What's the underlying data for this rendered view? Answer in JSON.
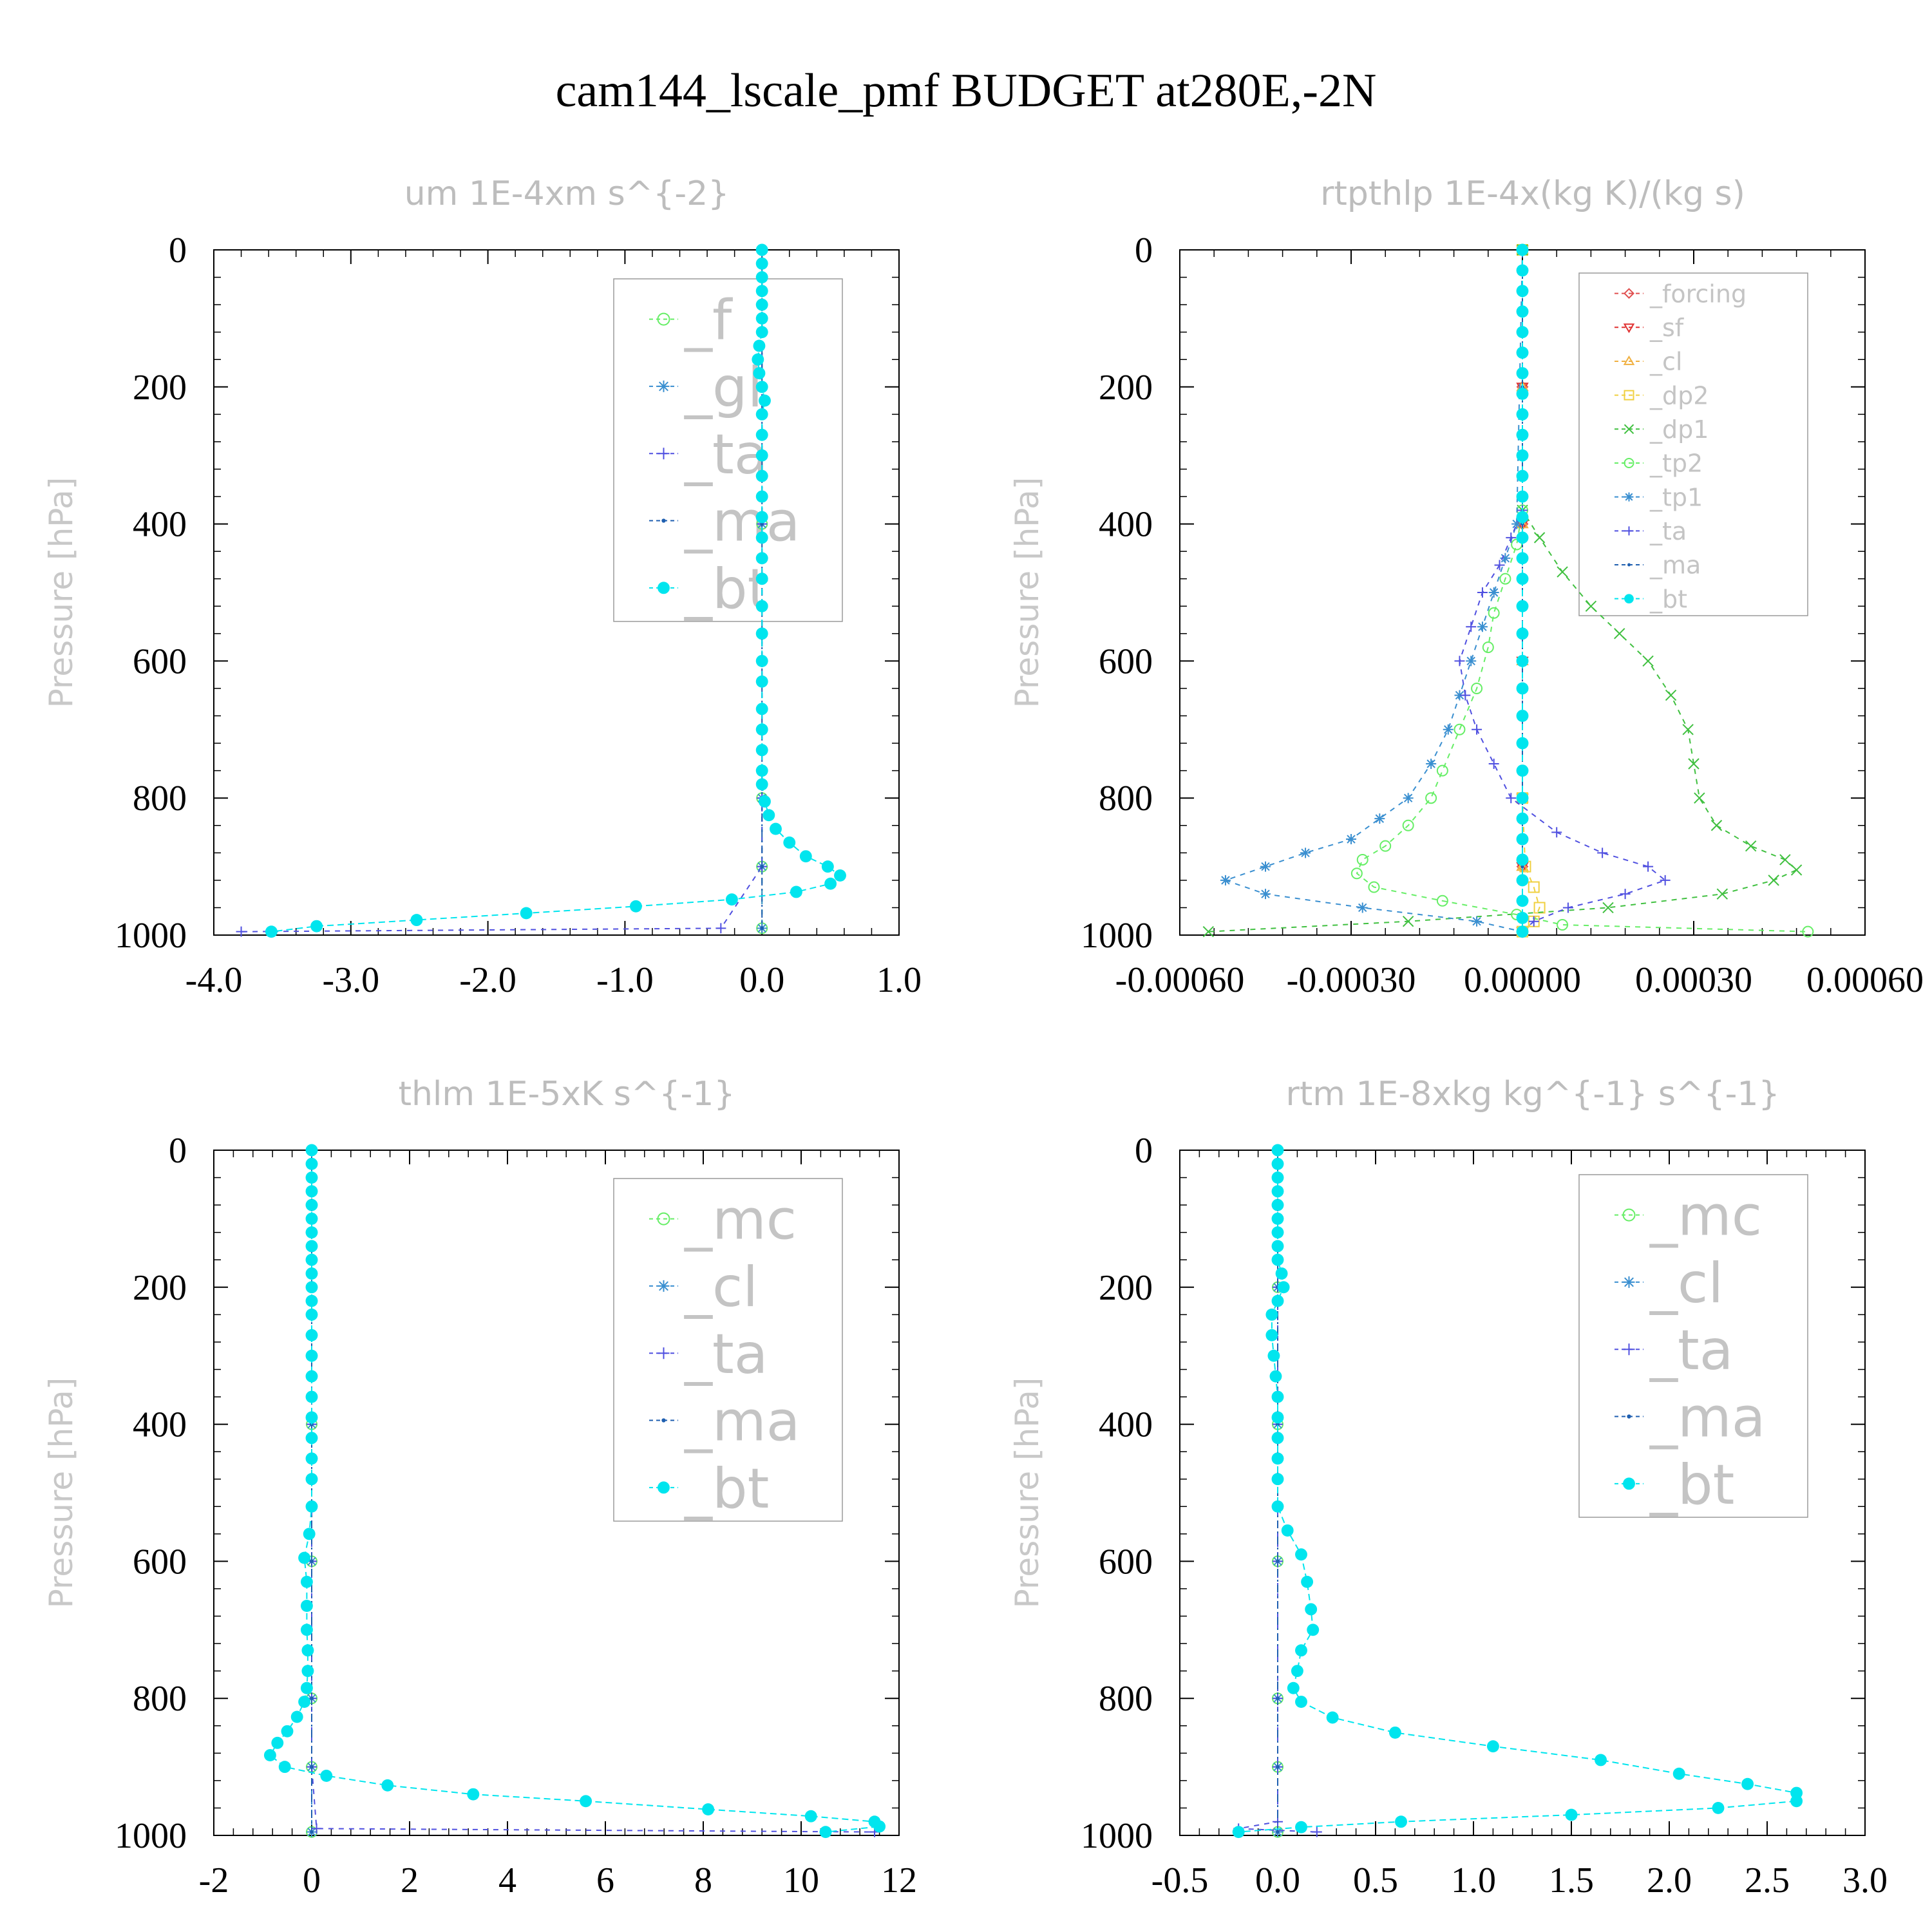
{
  "title": "cam144_lscale_pmf  BUDGET at280E,-2N",
  "chart_data": [
    {
      "id": "um",
      "type": "line",
      "title": "um   1E-4xm s^{-2}",
      "ylabel": "Pressure [hPa]",
      "xlim": [
        -4.0,
        1.0
      ],
      "ylim": [
        1000,
        0
      ],
      "xticks": [
        "-4.0",
        "-3.0",
        "-2.0",
        "-1.0",
        "0.0",
        "1.0"
      ],
      "yticks": [
        "0",
        "200",
        "400",
        "600",
        "800",
        "1000"
      ],
      "series": [
        {
          "name": "_f",
          "color": "#66ee66",
          "marker": "circle",
          "pressure": [
            0,
            200,
            400,
            600,
            800,
            900,
            990
          ],
          "values": [
            0.0,
            0.0,
            0.0,
            0.0,
            0.0,
            0.0,
            0.0
          ]
        },
        {
          "name": "_gl",
          "color": "#3a8fd0",
          "marker": "asterisk",
          "pressure": [
            0,
            200,
            400,
            600,
            800,
            900,
            990
          ],
          "values": [
            0.0,
            0.0,
            0.0,
            0.0,
            0.0,
            0.0,
            0.0
          ]
        },
        {
          "name": "_ta",
          "color": "#5050e0",
          "marker": "plus",
          "pressure": [
            0,
            200,
            400,
            600,
            800,
            900,
            990,
            995
          ],
          "values": [
            0.0,
            0.0,
            0.0,
            0.0,
            0.0,
            0.0,
            -0.3,
            -3.8
          ]
        },
        {
          "name": "_ma",
          "color": "#1f5fb0",
          "marker": "dot",
          "pressure": [
            0,
            200,
            400,
            600,
            800,
            900,
            990
          ],
          "values": [
            0.0,
            0.0,
            0.0,
            0.0,
            0.0,
            0.0,
            0.0
          ]
        },
        {
          "name": "_bt",
          "color": "#00e5ee",
          "marker": "filled",
          "pressure": [
            0,
            20,
            40,
            60,
            80,
            100,
            120,
            140,
            160,
            180,
            200,
            220,
            240,
            270,
            300,
            330,
            360,
            390,
            420,
            450,
            480,
            520,
            560,
            600,
            630,
            670,
            700,
            730,
            760,
            780,
            805,
            825,
            845,
            865,
            885,
            900,
            913,
            925,
            937,
            948,
            958,
            968,
            978,
            987,
            995
          ],
          "values": [
            0.0,
            0.0,
            0.0,
            0.0,
            0.0,
            0.0,
            0.0,
            -0.02,
            -0.03,
            -0.02,
            0.0,
            0.02,
            0.0,
            0.0,
            0.0,
            0.0,
            0.0,
            0.0,
            0.0,
            0.0,
            0.0,
            0.0,
            0.0,
            0.0,
            0.0,
            0.0,
            0.0,
            0.0,
            0.0,
            0.0,
            0.02,
            0.05,
            0.1,
            0.2,
            0.32,
            0.48,
            0.57,
            0.5,
            0.25,
            -0.22,
            -0.92,
            -1.72,
            -2.52,
            -3.25,
            -3.58
          ]
        }
      ],
      "legend_placement": "top-right"
    },
    {
      "id": "rtpthlp",
      "type": "line",
      "title": "rtpthlp   1E-4x(kg K)/(kg s)",
      "ylabel": "Pressure [hPa]",
      "xlim": [
        -0.0006,
        0.0006
      ],
      "ylim": [
        1000,
        0
      ],
      "xticks": [
        "-0.00060",
        "-0.00030",
        "0.00000",
        "0.00030",
        "0.00060"
      ],
      "yticks": [
        "0",
        "200",
        "400",
        "600",
        "800",
        "1000"
      ],
      "series": [
        {
          "name": "_forcing",
          "color": "#e05050",
          "marker": "diamond",
          "pressure": [
            0,
            200,
            400,
            600,
            800,
            900,
            995
          ],
          "values": [
            0.0,
            0.0,
            0.0,
            0.0,
            0.0,
            0.0,
            0.0
          ]
        },
        {
          "name": "_sf",
          "color": "#e03030",
          "marker": "triangle-down",
          "pressure": [
            0,
            200,
            400,
            600,
            800,
            900,
            995
          ],
          "values": [
            0.0,
            0.0,
            0.0,
            0.0,
            0.0,
            0.0,
            0.0
          ]
        },
        {
          "name": "_cl",
          "color": "#f0b040",
          "marker": "triangle-up",
          "pressure": [
            0,
            200,
            400,
            600,
            800,
            900,
            995
          ],
          "values": [
            0.0,
            0.0,
            0.0,
            0.0,
            0.0,
            0.0,
            0.0
          ]
        },
        {
          "name": "_dp2",
          "color": "#f0d040",
          "marker": "square",
          "pressure": [
            0,
            800,
            900,
            930,
            960,
            980,
            995
          ],
          "values": [
            0.0,
            0.0,
            5e-06,
            2e-05,
            3e-05,
            2e-05,
            0.0
          ]
        },
        {
          "name": "_dp1",
          "color": "#40c040",
          "marker": "cross",
          "pressure": [
            0,
            380,
            420,
            470,
            520,
            560,
            600,
            650,
            700,
            750,
            800,
            840,
            870,
            890,
            905,
            920,
            940,
            960,
            980,
            995
          ],
          "values": [
            0.0,
            0.0,
            3e-05,
            7e-05,
            0.00012,
            0.00017,
            0.00022,
            0.00026,
            0.00029,
            0.0003,
            0.00031,
            0.00034,
            0.0004,
            0.00046,
            0.00048,
            0.00044,
            0.00035,
            0.00015,
            -0.0002,
            -0.00055
          ]
        },
        {
          "name": "_tp2",
          "color": "#66ee66",
          "marker": "circle",
          "pressure": [
            0,
            380,
            430,
            480,
            530,
            580,
            640,
            700,
            760,
            800,
            840,
            870,
            890,
            910,
            930,
            950,
            970,
            985,
            995
          ],
          "values": [
            0.0,
            0.0,
            -1e-05,
            -3e-05,
            -5e-05,
            -6e-05,
            -8e-05,
            -0.00011,
            -0.00014,
            -0.00016,
            -0.0002,
            -0.00024,
            -0.00028,
            -0.00029,
            -0.00026,
            -0.00014,
            -1e-05,
            7e-05,
            0.0005
          ]
        },
        {
          "name": "_tp1",
          "color": "#3a8fd0",
          "marker": "asterisk",
          "pressure": [
            0,
            400,
            450,
            500,
            550,
            600,
            650,
            700,
            750,
            800,
            830,
            860,
            880,
            900,
            920,
            940,
            960,
            980,
            995
          ],
          "values": [
            0.0,
            -1e-05,
            -3e-05,
            -5e-05,
            -7e-05,
            -9e-05,
            -0.00011,
            -0.00013,
            -0.00016,
            -0.0002,
            -0.00025,
            -0.0003,
            -0.00038,
            -0.00045,
            -0.00052,
            -0.00045,
            -0.00028,
            -8e-05,
            0.0
          ]
        },
        {
          "name": "_ta",
          "color": "#5050e0",
          "marker": "plus",
          "pressure": [
            0,
            380,
            420,
            460,
            500,
            550,
            600,
            650,
            700,
            750,
            800,
            850,
            880,
            900,
            920,
            940,
            960,
            980,
            995
          ],
          "values": [
            0.0,
            0.0,
            -2e-05,
            -4e-05,
            -7e-05,
            -9e-05,
            -0.00011,
            -0.0001,
            -8e-05,
            -5e-05,
            -2e-05,
            6e-05,
            0.00014,
            0.00022,
            0.00025,
            0.00018,
            8e-05,
            2e-05,
            0.0
          ]
        },
        {
          "name": "_ma",
          "color": "#1f5fb0",
          "marker": "dot",
          "pressure": [
            0,
            200,
            400,
            600,
            800,
            900,
            995
          ],
          "values": [
            0.0,
            0.0,
            0.0,
            0.0,
            0.0,
            0.0,
            0.0
          ]
        },
        {
          "name": "_bt",
          "color": "#00e5ee",
          "marker": "filled",
          "pressure": [
            0,
            30,
            60,
            90,
            120,
            150,
            180,
            210,
            240,
            270,
            300,
            330,
            360,
            390,
            420,
            450,
            480,
            520,
            560,
            600,
            640,
            680,
            720,
            760,
            800,
            830,
            860,
            890,
            920,
            950,
            975,
            995
          ],
          "values": [
            0.0,
            0.0,
            0.0,
            0.0,
            0.0,
            0.0,
            0.0,
            0.0,
            0.0,
            0.0,
            0.0,
            0.0,
            0.0,
            0.0,
            0.0,
            0.0,
            0.0,
            0.0,
            0.0,
            0.0,
            0.0,
            0.0,
            0.0,
            0.0,
            0.0,
            0.0,
            0.0,
            0.0,
            0.0,
            0.0,
            0.0,
            0.0
          ]
        }
      ],
      "legend_placement": "top-right"
    },
    {
      "id": "thlm",
      "type": "line",
      "title": "thlm   1E-5xK s^{-1}",
      "ylabel": "Pressure [hPa]",
      "xlim": [
        -2,
        12
      ],
      "ylim": [
        1000,
        0
      ],
      "xticks": [
        "-2",
        "0",
        "2",
        "4",
        "6",
        "8",
        "10",
        "12"
      ],
      "yticks": [
        "0",
        "200",
        "400",
        "600",
        "800",
        "1000"
      ],
      "series": [
        {
          "name": "_mc",
          "color": "#66ee66",
          "marker": "circle",
          "pressure": [
            0,
            200,
            400,
            600,
            800,
            900,
            995
          ],
          "values": [
            0.0,
            0.0,
            0.0,
            0.0,
            0.0,
            0.0,
            0.0
          ]
        },
        {
          "name": "_cl",
          "color": "#3a8fd0",
          "marker": "asterisk",
          "pressure": [
            0,
            200,
            400,
            600,
            800,
            900,
            995
          ],
          "values": [
            0.0,
            0.0,
            0.0,
            0.0,
            0.0,
            0.0,
            0.0
          ]
        },
        {
          "name": "_ta",
          "color": "#5050e0",
          "marker": "plus",
          "pressure": [
            0,
            200,
            400,
            600,
            800,
            900,
            990,
            995
          ],
          "values": [
            0.0,
            0.0,
            0.0,
            0.0,
            0.0,
            0.0,
            0.1,
            11.5
          ]
        },
        {
          "name": "_ma",
          "color": "#1f5fb0",
          "marker": "dot",
          "pressure": [
            0,
            200,
            400,
            600,
            800,
            900,
            995
          ],
          "values": [
            0.0,
            0.0,
            0.0,
            0.0,
            0.0,
            0.0,
            0.0
          ]
        },
        {
          "name": "_bt",
          "color": "#00e5ee",
          "marker": "filled",
          "pressure": [
            0,
            20,
            40,
            60,
            80,
            100,
            120,
            140,
            160,
            180,
            200,
            220,
            240,
            270,
            300,
            330,
            360,
            390,
            420,
            450,
            480,
            520,
            560,
            595,
            630,
            665,
            700,
            730,
            760,
            785,
            805,
            827,
            848,
            865,
            883,
            900,
            913,
            927,
            940,
            950,
            962,
            972,
            980,
            987,
            995
          ],
          "values": [
            0.0,
            0.0,
            0.0,
            0.0,
            0.0,
            0.0,
            0.0,
            0.0,
            0.0,
            0.0,
            0.0,
            0.0,
            0.0,
            0.0,
            0.0,
            0.0,
            0.0,
            0.0,
            0.0,
            0.0,
            0.0,
            0.0,
            -0.05,
            -0.15,
            -0.1,
            -0.1,
            -0.1,
            -0.08,
            -0.08,
            -0.1,
            -0.15,
            -0.3,
            -0.5,
            -0.7,
            -0.85,
            -0.55,
            0.3,
            1.55,
            3.3,
            5.6,
            8.1,
            10.2,
            11.5,
            11.6,
            10.5
          ]
        }
      ],
      "legend_placement": "top-right"
    },
    {
      "id": "rtm",
      "type": "line",
      "title": "rtm   1E-8xkg kg^{-1} s^{-1}",
      "ylabel": "Pressure [hPa]",
      "xlim": [
        -0.5,
        3.0
      ],
      "ylim": [
        1000,
        0
      ],
      "xticks": [
        "-0.5",
        "0.0",
        "0.5",
        "1.0",
        "1.5",
        "2.0",
        "2.5",
        "3.0"
      ],
      "yticks": [
        "0",
        "200",
        "400",
        "600",
        "800",
        "1000"
      ],
      "series": [
        {
          "name": "_mc",
          "color": "#66ee66",
          "marker": "circle",
          "pressure": [
            0,
            200,
            400,
            600,
            800,
            900,
            995
          ],
          "values": [
            0.0,
            0.0,
            0.0,
            0.0,
            0.0,
            0.0,
            0.0
          ]
        },
        {
          "name": "_cl",
          "color": "#3a8fd0",
          "marker": "asterisk",
          "pressure": [
            0,
            200,
            400,
            600,
            800,
            900,
            995
          ],
          "values": [
            0.0,
            0.0,
            0.0,
            0.0,
            0.0,
            0.0,
            0.0
          ]
        },
        {
          "name": "_ta",
          "color": "#5050e0",
          "marker": "plus",
          "pressure": [
            0,
            200,
            400,
            600,
            800,
            900,
            980,
            990,
            995
          ],
          "values": [
            0.0,
            0.0,
            0.0,
            0.0,
            0.0,
            0.0,
            0.0,
            -0.2,
            0.2
          ]
        },
        {
          "name": "_ma",
          "color": "#1f5fb0",
          "marker": "dot",
          "pressure": [
            0,
            200,
            400,
            600,
            800,
            900,
            995
          ],
          "values": [
            0.0,
            0.0,
            0.0,
            0.0,
            0.0,
            0.0,
            0.0
          ]
        },
        {
          "name": "_bt",
          "color": "#00e5ee",
          "marker": "filled",
          "pressure": [
            0,
            20,
            40,
            60,
            80,
            100,
            120,
            140,
            160,
            180,
            200,
            220,
            240,
            270,
            300,
            330,
            360,
            390,
            420,
            450,
            480,
            520,
            555,
            590,
            630,
            670,
            700,
            730,
            760,
            785,
            805,
            828,
            850,
            870,
            890,
            910,
            925,
            938,
            950,
            960,
            970,
            980,
            988,
            995
          ],
          "values": [
            0.0,
            0.0,
            0.0,
            0.0,
            0.0,
            0.0,
            0.0,
            0.0,
            0.0,
            0.02,
            0.03,
            0.0,
            -0.03,
            -0.03,
            -0.02,
            -0.01,
            0.0,
            0.0,
            0.0,
            0.0,
            0.0,
            0.0,
            0.05,
            0.12,
            0.15,
            0.17,
            0.18,
            0.12,
            0.1,
            0.08,
            0.12,
            0.28,
            0.6,
            1.1,
            1.65,
            2.05,
            2.4,
            2.65,
            2.65,
            2.25,
            1.5,
            0.63,
            0.12,
            -0.2
          ]
        }
      ],
      "legend_placement": "top-right"
    }
  ]
}
